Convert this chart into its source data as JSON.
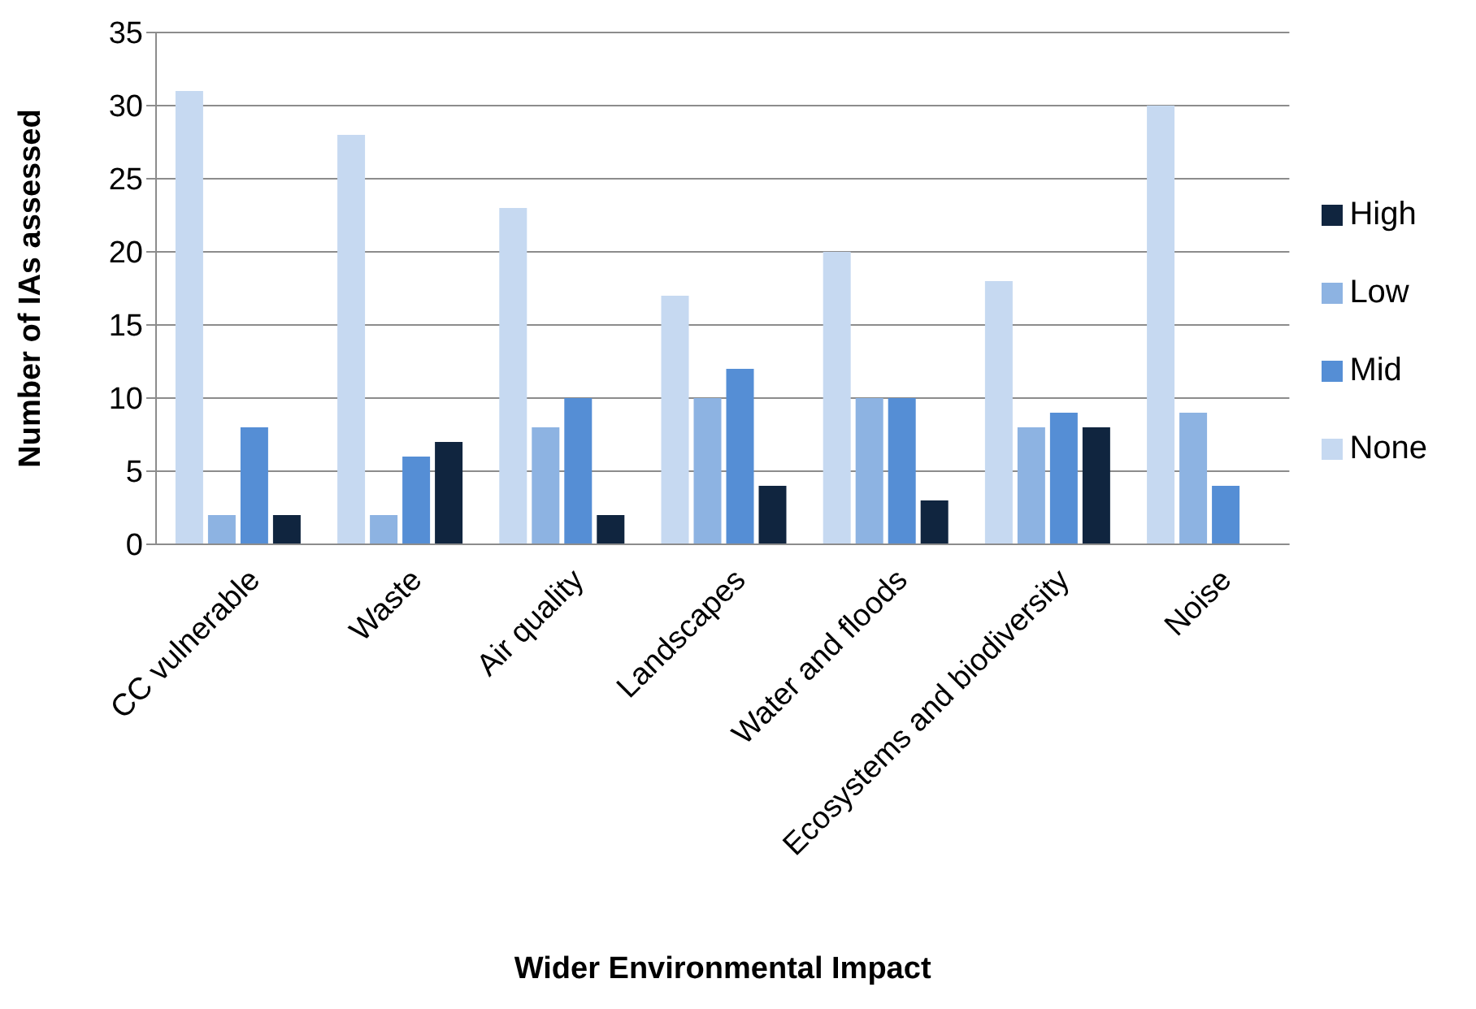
{
  "chart_data": {
    "type": "bar",
    "xlabel": "Wider Environmental Impact",
    "ylabel": "Number of IAs assessed",
    "categories": [
      "CC vulnerable",
      "Waste",
      "Air quality",
      "Landscapes",
      "Water and floods",
      "Ecosystems and biodiversity",
      "Noise"
    ],
    "series": [
      {
        "name": "None",
        "color": "#c6d9f1",
        "values": [
          31,
          28,
          23,
          17,
          20,
          18,
          30
        ]
      },
      {
        "name": "Low",
        "color": "#8db3e2",
        "values": [
          2,
          2,
          8,
          10,
          10,
          8,
          9
        ]
      },
      {
        "name": "Mid",
        "color": "#558ed5",
        "values": [
          8,
          6,
          10,
          12,
          10,
          9,
          4
        ]
      },
      {
        "name": "High",
        "color": "#10253f",
        "values": [
          2,
          7,
          2,
          4,
          3,
          8,
          0
        ]
      }
    ],
    "ylim": [
      0,
      35
    ],
    "yticks": [
      0,
      5,
      10,
      15,
      20,
      25,
      30,
      35
    ],
    "grid": "y",
    "legend": "right"
  }
}
